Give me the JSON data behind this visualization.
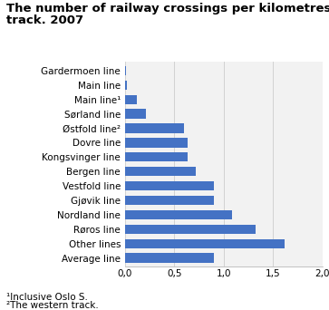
{
  "title_line1": "The number of railway crossings per kilometres of main",
  "title_line2": "track. 2007",
  "categories": [
    "Gardermoen line",
    "Main line",
    "Main line¹",
    "Sørland line",
    "Østfold line²",
    "Dovre line",
    "Kongsvinger line",
    "Bergen line",
    "Vestfold line",
    "Gjøvik line",
    "Nordland line",
    "Røros line",
    "Other lines",
    "Average line"
  ],
  "values": [
    0.01,
    0.02,
    0.12,
    0.21,
    0.6,
    0.63,
    0.63,
    0.72,
    0.9,
    0.9,
    1.08,
    1.32,
    1.62,
    0.9
  ],
  "bar_color": "#4472C4",
  "xlim": [
    0,
    2.0
  ],
  "xticks": [
    0.0,
    0.5,
    1.0,
    1.5,
    2.0
  ],
  "xticklabels": [
    "0,0",
    "0,5",
    "1,0",
    "1,5",
    "2,0"
  ],
  "footnote1": "¹Inclusive Oslo S.",
  "footnote2": "²The western track.",
  "title_fontsize": 9.5,
  "tick_fontsize": 7.5,
  "footnote_fontsize": 7.5
}
